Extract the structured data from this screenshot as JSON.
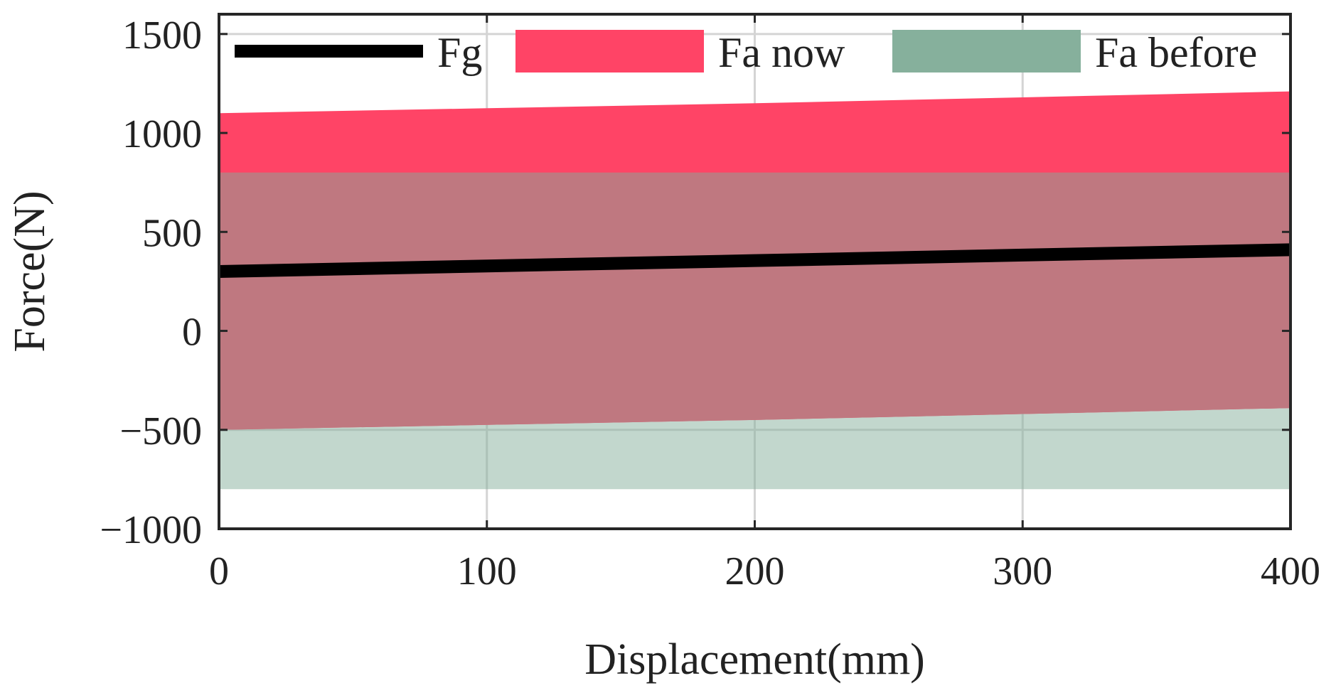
{
  "chart_data": {
    "type": "area",
    "xlabel": "Displacement(mm)",
    "ylabel": "Force(N)",
    "xlim": [
      0,
      400
    ],
    "ylim": [
      -1000,
      1600
    ],
    "xticks": [
      0,
      100,
      200,
      300,
      400
    ],
    "yticks": [
      -1000,
      -500,
      0,
      500,
      1000,
      1500
    ],
    "xtick_labels": [
      "0",
      "100",
      "200",
      "300",
      "400"
    ],
    "ytick_labels": [
      "−1000",
      "−500",
      "0",
      "500",
      "1000",
      "1500"
    ],
    "grid": true,
    "legend_position": "top",
    "series": [
      {
        "name": "Fg",
        "kind": "line",
        "color": "#000000",
        "x": [
          0,
          100,
          200,
          300,
          400
        ],
        "y": [
          300,
          328,
          355,
          383,
          410
        ]
      },
      {
        "name": "Fa now",
        "kind": "band",
        "color": "#ff4466",
        "x": [
          0,
          100,
          200,
          300,
          400
        ],
        "upper": [
          1100,
          1125,
          1150,
          1180,
          1210
        ],
        "lower": [
          -500,
          -475,
          -450,
          -420,
          -390
        ]
      },
      {
        "name": "Fa before",
        "kind": "band",
        "color": "#86b09c",
        "x": [
          0,
          400
        ],
        "upper": [
          800,
          800
        ],
        "lower": [
          -800,
          -800
        ]
      }
    ]
  }
}
